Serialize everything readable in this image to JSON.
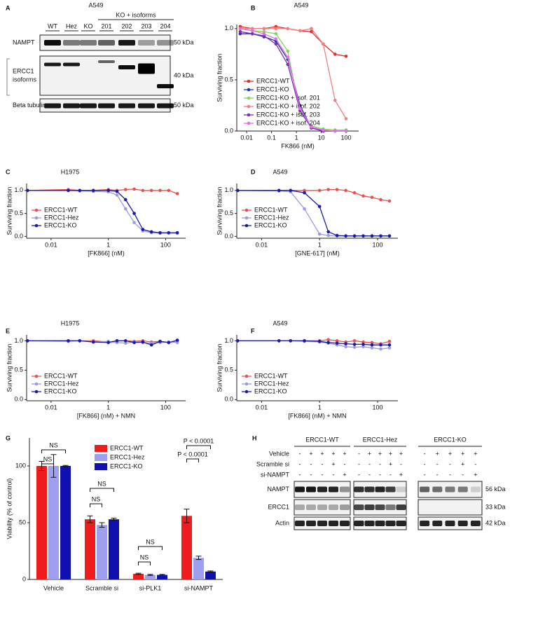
{
  "panel_labels": [
    "A",
    "B",
    "C",
    "D",
    "E",
    "F",
    "G",
    "H"
  ],
  "blot_a": {
    "title": "A549",
    "group_label": "KO + isoforms",
    "lanes": [
      "WT",
      "Hez",
      "KO",
      "201",
      "202",
      "203",
      "204"
    ],
    "rows": [
      {
        "label": [
          "NAMPT"
        ],
        "size": "50 kDa"
      },
      {
        "label": [
          "ERCC1",
          "isoforms"
        ],
        "size": "40 kDa"
      },
      {
        "label": [
          "Beta tubulin"
        ],
        "size": "50 kDa"
      }
    ]
  },
  "chart_data": [
    {
      "type": "line",
      "title": "A549",
      "xlabel": "FK866 (nM)",
      "ylabel": "Surviving fraction",
      "log_x": true,
      "legend": "lower left",
      "grid": false,
      "x": [
        0.0055,
        0.017,
        0.05,
        0.15,
        0.45,
        1.4,
        4,
        12,
        36,
        100
      ],
      "xlim": [
        0.004,
        320
      ],
      "ylim": [
        0,
        1.04
      ],
      "xticks": [
        0.01,
        0.1,
        1,
        10,
        100
      ],
      "yticks": [
        {
          "value": 0,
          "label": "0.0"
        },
        0.5,
        {
          "value": 1,
          "label": "1.0"
        }
      ],
      "series": [
        {
          "name": "ERCC1-WT",
          "color": "#e0302c",
          "values": [
            1.02,
            1.0,
            1.0,
            1.02,
            1.0,
            0.98,
            0.97,
            0.85,
            0.75,
            0.73
          ]
        },
        {
          "name": "ERCC1-KO",
          "color": "#2233aa",
          "values": [
            0.95,
            0.95,
            0.92,
            0.88,
            0.7,
            0.25,
            0.03,
            0.0,
            0.0,
            0.0
          ]
        },
        {
          "name": "ERCC1-KO + isof. 201",
          "color": "#7ed957",
          "values": [
            1.0,
            0.98,
            0.97,
            0.95,
            0.78,
            0.18,
            0.05,
            0.02,
            0.01,
            0.01
          ]
        },
        {
          "name": "ERCC1-KO + isof. 202",
          "color": "#f08080",
          "values": [
            1.0,
            1.0,
            1.0,
            1.0,
            1.0,
            0.98,
            1.0,
            0.85,
            0.3,
            0.12
          ]
        },
        {
          "name": "ERCC1-KO + isof. 203",
          "color": "#7a2fbf",
          "values": [
            0.97,
            0.95,
            0.93,
            0.85,
            0.65,
            0.2,
            0.03,
            0.0,
            0.0,
            0.0
          ]
        },
        {
          "name": "ERCC1-KO + isof. 204",
          "color": "#e66ee6",
          "values": [
            1.0,
            0.98,
            0.95,
            0.9,
            0.72,
            0.22,
            0.04,
            0.01,
            0.0,
            0.0
          ]
        }
      ]
    },
    {
      "type": "line",
      "title": "H1975",
      "xlabel": "[FK866] (nM)",
      "ylabel": "Surviving fraction",
      "log_x": true,
      "legend": "lower left",
      "grid": false,
      "x": [
        0.0015,
        0.04,
        0.1,
        0.3,
        1,
        2,
        4,
        8,
        16,
        32,
        64,
        128,
        256
      ],
      "xlim": [
        0.0014,
        500
      ],
      "ylim": [
        -0.04,
        1.15
      ],
      "xticks": [
        0.01,
        1,
        100
      ],
      "yticks": [
        {
          "value": 0,
          "label": "0.0"
        },
        0.5,
        {
          "value": 1,
          "label": "1.0"
        }
      ],
      "series": [
        {
          "name": "ERCC1-WT",
          "color": "#e85050",
          "values": [
            1.0,
            1.02,
            1.0,
            1.0,
            1.02,
            1.0,
            1.02,
            1.03,
            1.0,
            1.0,
            1.0,
            1.0,
            0.93
          ]
        },
        {
          "name": "ERCC1-Hez",
          "color": "#9a9ae8",
          "values": [
            1.0,
            1.0,
            0.99,
            0.98,
            0.97,
            0.9,
            0.6,
            0.3,
            0.12,
            0.08,
            0.07,
            0.07,
            0.07
          ]
        },
        {
          "name": "ERCC1-KO",
          "color": "#1a1aaa",
          "values": [
            1.0,
            1.0,
            1.0,
            1.0,
            1.0,
            0.98,
            0.8,
            0.5,
            0.15,
            0.1,
            0.08,
            0.08,
            0.08
          ]
        }
      ]
    },
    {
      "type": "line",
      "title": "A549",
      "xlabel": "[GNE-617] (nM)",
      "ylabel": "Surviving fraction",
      "log_x": true,
      "legend": "lower left",
      "grid": false,
      "x": [
        0.0015,
        0.04,
        0.1,
        0.3,
        1,
        2,
        4,
        8,
        16,
        32,
        64,
        128,
        256
      ],
      "xlim": [
        0.0014,
        500
      ],
      "ylim": [
        -0.04,
        1.15
      ],
      "xticks": [
        0.01,
        1,
        100
      ],
      "yticks": [
        {
          "value": 0,
          "label": "0.0"
        },
        0.5,
        {
          "value": 1,
          "label": "1.0"
        }
      ],
      "series": [
        {
          "name": "ERCC1-WT",
          "color": "#e85050",
          "values": [
            1.0,
            1.0,
            1.0,
            1.0,
            1.0,
            1.02,
            1.02,
            1.0,
            0.95,
            0.88,
            0.85,
            0.8,
            0.77
          ]
        },
        {
          "name": "ERCC1-Hez",
          "color": "#9a9ae8",
          "values": [
            1.0,
            0.99,
            0.97,
            0.6,
            0.05,
            0.02,
            0.01,
            0.01,
            0.01,
            0.01,
            0.01,
            0.01,
            0.01
          ]
        },
        {
          "name": "ERCC1-KO",
          "color": "#1a1aaa",
          "values": [
            1.0,
            1.0,
            1.0,
            0.95,
            0.65,
            0.1,
            0.02,
            0.01,
            0.01,
            0.01,
            0.01,
            0.01,
            0.01
          ]
        }
      ]
    },
    {
      "type": "line",
      "title": "H1975",
      "xlabel": "[FK866] (nM) + NMN",
      "ylabel": "Surviving fraction",
      "log_x": true,
      "legend": "lower left",
      "grid": false,
      "x": [
        0.0015,
        0.04,
        0.1,
        0.3,
        1,
        2,
        4,
        8,
        16,
        32,
        64,
        128,
        256
      ],
      "xlim": [
        0.0014,
        500
      ],
      "ylim": [
        -0.02,
        1.1
      ],
      "xticks": [
        0.01,
        1,
        100
      ],
      "yticks": [
        {
          "value": 0,
          "label": "0.0"
        },
        0.5,
        {
          "value": 1,
          "label": "1.0"
        }
      ],
      "series": [
        {
          "name": "ERCC1-WT",
          "color": "#e85050",
          "values": [
            1,
            1,
            1,
            1,
            0.98,
            1,
            1,
            0.99,
            1,
            0.98,
            0.99,
            0.97,
            1.0
          ]
        },
        {
          "name": "ERCC1-Hez",
          "color": "#9a9ae8",
          "values": [
            1,
            0.99,
            1,
            0.98,
            0.99,
            0.97,
            0.96,
            0.98,
            0.97,
            0.96,
            0.97,
            0.98,
            0.97
          ]
        },
        {
          "name": "ERCC1-KO",
          "color": "#1a1aaa",
          "values": [
            1,
            1,
            1,
            0.98,
            0.97,
            1.0,
            1.0,
            0.97,
            0.98,
            0.93,
            0.99,
            0.97,
            1.01
          ]
        }
      ]
    },
    {
      "type": "line",
      "title": "A549",
      "xlabel": "[FK866] (nM) + NMN",
      "ylabel": "Surviving fraction",
      "log_x": true,
      "legend": "lower left",
      "grid": false,
      "x": [
        0.0015,
        0.04,
        0.1,
        0.3,
        1,
        2,
        4,
        8,
        16,
        32,
        64,
        128,
        256
      ],
      "xlim": [
        0.0014,
        500
      ],
      "ylim": [
        -0.02,
        1.1
      ],
      "xticks": [
        0.01,
        1,
        100
      ],
      "yticks": [
        {
          "value": 0,
          "label": "0.0"
        },
        0.5,
        {
          "value": 1,
          "label": "1.0"
        }
      ],
      "series": [
        {
          "name": "ERCC1-WT",
          "color": "#e85050",
          "values": [
            1,
            1,
            1,
            1,
            1.0,
            1.02,
            1.0,
            0.98,
            1.0,
            0.98,
            0.97,
            0.95,
            0.99
          ]
        },
        {
          "name": "ERCC1-Hez",
          "color": "#9a9ae8",
          "values": [
            1,
            1,
            1,
            0.99,
            0.98,
            0.96,
            0.93,
            0.9,
            0.89,
            0.9,
            0.88,
            0.86,
            0.88
          ]
        },
        {
          "name": "ERCC1-KO",
          "color": "#1a1aaa",
          "values": [
            1,
            1,
            1,
            1,
            0.99,
            0.97,
            0.96,
            0.95,
            0.94,
            0.94,
            0.93,
            0.93,
            0.93
          ]
        }
      ]
    },
    {
      "type": "bar",
      "ylabel": "Viability (% of control)",
      "legend": "upper center",
      "grid": false,
      "categories": [
        "Vehicle",
        "Scramble si",
        "si-PLK1",
        "si-NAMPT"
      ],
      "ylim": [
        0,
        124.7
      ],
      "yticks": [
        0,
        50,
        100
      ],
      "series": [
        {
          "name": "ERCC1-WT",
          "color": "#ee1c1c",
          "values": [
            100,
            53,
            5,
            56
          ],
          "errors": [
            4,
            3,
            0.5,
            6
          ]
        },
        {
          "name": "ERCC1-Hez",
          "color": "#9f9fef",
          "values": [
            100,
            48,
            4,
            19
          ],
          "errors": [
            10,
            2,
            0.5,
            1.5
          ]
        },
        {
          "name": "ERCC1-KO",
          "color": "#1010b0",
          "values": [
            100,
            53,
            4,
            7
          ],
          "errors": [
            0.5,
            1,
            0.5,
            0.5
          ]
        }
      ],
      "annotations": [
        "NS",
        "NS",
        "NS",
        "NS",
        "NS",
        "NS",
        "P < 0.0001",
        "P < 0.0001"
      ]
    }
  ],
  "blot_h": {
    "groups": [
      "ERCC1-WT",
      "ERCC1-Hez",
      "ERCC1-KO"
    ],
    "treatments": [
      {
        "label": "Vehicle",
        "signs": [
          [
            "-",
            "+",
            "+",
            "+",
            "+"
          ],
          [
            "-",
            "+",
            "+",
            "+",
            "+"
          ],
          [
            "-",
            "+",
            "+",
            "+",
            "+"
          ]
        ]
      },
      {
        "label": "Scramble si",
        "signs": [
          [
            "-",
            "-",
            "-",
            "+",
            "-"
          ],
          [
            "-",
            "-",
            "-",
            "+",
            "-"
          ],
          [
            "-",
            "-",
            "-",
            "+",
            "-"
          ]
        ]
      },
      {
        "label": "si-NAMPT",
        "signs": [
          [
            "-",
            "-",
            "-",
            "-",
            "+"
          ],
          [
            "-",
            "-",
            "-",
            "-",
            "+"
          ],
          [
            "-",
            "-",
            "-",
            "-",
            "+"
          ]
        ]
      }
    ],
    "rows": [
      {
        "label": "NAMPT",
        "size": "56 kDa"
      },
      {
        "label": "ERCC1",
        "size": "33 kDa"
      },
      {
        "label": "Actin",
        "size": "42 kDa"
      }
    ]
  }
}
